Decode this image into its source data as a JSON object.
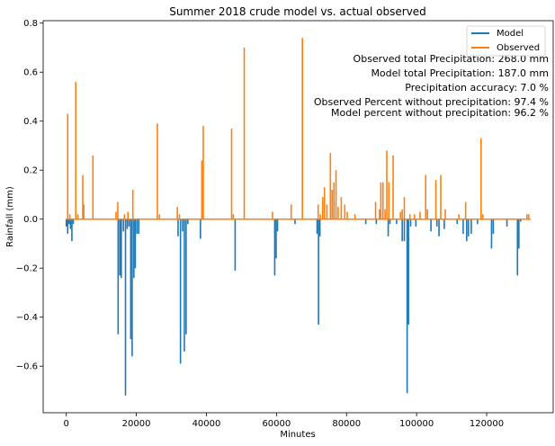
{
  "chart_data": {
    "type": "line",
    "title": "Summer 2018 crude model vs. actual observed",
    "xlabel": "Minutes",
    "ylabel": "Rainfall (mm)",
    "xlim": [
      -6600,
      139000
    ],
    "ylim": [
      -0.79,
      0.81
    ],
    "xticks": [
      0,
      20000,
      40000,
      60000,
      80000,
      100000,
      120000
    ],
    "yticks": [
      -0.6,
      -0.4,
      -0.2,
      0.0,
      0.2,
      0.4,
      0.6,
      0.8
    ],
    "xtick_labels": [
      "0",
      "20000",
      "40000",
      "60000",
      "80000",
      "100000",
      "120000"
    ],
    "ytick_labels": [
      "−0.6",
      "−0.4",
      "−0.2",
      "0.0",
      "0.2",
      "0.4",
      "0.6",
      "0.8"
    ],
    "grid": false,
    "legend_position": "top-right",
    "series": [
      {
        "name": "Model",
        "color": "#1f77b4",
        "points": [
          [
            0,
            -0.03
          ],
          [
            400,
            -0.06
          ],
          [
            800,
            -0.02
          ],
          [
            1200,
            -0.04
          ],
          [
            1600,
            -0.09
          ],
          [
            2000,
            -0.02
          ],
          [
            14800,
            -0.47
          ],
          [
            15300,
            -0.23
          ],
          [
            15700,
            -0.24
          ],
          [
            16300,
            -0.05
          ],
          [
            16900,
            -0.72
          ],
          [
            17400,
            -0.04
          ],
          [
            17900,
            -0.03
          ],
          [
            18400,
            -0.49
          ],
          [
            18800,
            -0.56
          ],
          [
            19300,
            -0.24
          ],
          [
            19700,
            -0.2
          ],
          [
            20200,
            -0.06
          ],
          [
            20700,
            -0.06
          ],
          [
            31900,
            -0.07
          ],
          [
            32600,
            -0.59
          ],
          [
            33200,
            -0.05
          ],
          [
            33700,
            -0.54
          ],
          [
            34200,
            -0.47
          ],
          [
            34700,
            -0.02
          ],
          [
            38300,
            -0.08
          ],
          [
            48200,
            -0.21
          ],
          [
            59500,
            -0.23
          ],
          [
            59900,
            -0.16
          ],
          [
            60300,
            -0.05
          ],
          [
            65300,
            -0.02
          ],
          [
            71600,
            -0.06
          ],
          [
            72000,
            -0.43
          ],
          [
            72400,
            -0.07
          ],
          [
            85500,
            -0.02
          ],
          [
            88500,
            -0.02
          ],
          [
            91900,
            -0.07
          ],
          [
            92400,
            -0.02
          ],
          [
            94300,
            -0.02
          ],
          [
            95900,
            -0.09
          ],
          [
            96500,
            -0.09
          ],
          [
            97300,
            -0.71
          ],
          [
            97700,
            -0.43
          ],
          [
            98300,
            -0.03
          ],
          [
            99800,
            -0.03
          ],
          [
            104100,
            -0.05
          ],
          [
            105800,
            -0.03
          ],
          [
            106400,
            -0.07
          ],
          [
            107900,
            -0.04
          ],
          [
            111600,
            -0.02
          ],
          [
            113300,
            -0.06
          ],
          [
            114300,
            -0.09
          ],
          [
            114800,
            -0.07
          ],
          [
            115600,
            -0.06
          ],
          [
            117400,
            -0.02
          ],
          [
            121400,
            -0.12
          ],
          [
            121900,
            -0.06
          ],
          [
            125800,
            -0.03
          ],
          [
            128800,
            -0.23
          ],
          [
            129200,
            -0.12
          ],
          [
            129700,
            -0.01
          ]
        ]
      },
      {
        "name": "Observed",
        "color": "#ff7f0e",
        "points": [
          [
            400,
            0.43
          ],
          [
            1000,
            0.02
          ],
          [
            2700,
            0.56
          ],
          [
            3300,
            0.02
          ],
          [
            4700,
            0.18
          ],
          [
            5000,
            0.06
          ],
          [
            7600,
            0.26
          ],
          [
            14200,
            0.03
          ],
          [
            14700,
            0.07
          ],
          [
            16600,
            0.02
          ],
          [
            17600,
            0.03
          ],
          [
            19000,
            0.12
          ],
          [
            26000,
            0.39
          ],
          [
            26600,
            0.02
          ],
          [
            31700,
            0.05
          ],
          [
            32300,
            0.02
          ],
          [
            38700,
            0.24
          ],
          [
            39100,
            0.38
          ],
          [
            47200,
            0.37
          ],
          [
            47700,
            0.02
          ],
          [
            50800,
            0.7
          ],
          [
            58900,
            0.03
          ],
          [
            64200,
            0.06
          ],
          [
            67400,
            0.74
          ],
          [
            71900,
            0.06
          ],
          [
            72500,
            0.02
          ],
          [
            73200,
            0.09
          ],
          [
            73700,
            0.13
          ],
          [
            74400,
            0.06
          ],
          [
            75400,
            0.27
          ],
          [
            75900,
            0.12
          ],
          [
            76400,
            0.15
          ],
          [
            77000,
            0.2
          ],
          [
            77600,
            0.05
          ],
          [
            78500,
            0.09
          ],
          [
            79500,
            0.06
          ],
          [
            80200,
            0.03
          ],
          [
            82400,
            0.02
          ],
          [
            88300,
            0.07
          ],
          [
            89400,
            0.04
          ],
          [
            89800,
            0.15
          ],
          [
            90400,
            0.15
          ],
          [
            91000,
            0.04
          ],
          [
            91500,
            0.28
          ],
          [
            92100,
            0.15
          ],
          [
            93300,
            0.26
          ],
          [
            95400,
            0.03
          ],
          [
            95900,
            0.04
          ],
          [
            96500,
            0.09
          ],
          [
            98100,
            0.02
          ],
          [
            99400,
            0.02
          ],
          [
            101000,
            0.03
          ],
          [
            102600,
            0.18
          ],
          [
            103100,
            0.04
          ],
          [
            105500,
            0.16
          ],
          [
            106900,
            0.18
          ],
          [
            108200,
            0.04
          ],
          [
            112100,
            0.02
          ],
          [
            114000,
            0.07
          ],
          [
            118400,
            0.33
          ],
          [
            118900,
            0.02
          ],
          [
            131500,
            0.02
          ],
          [
            132000,
            0.02
          ]
        ]
      }
    ],
    "annotations": [
      "Observed total Precipitation: 268.0 mm",
      "Model total Precipitation: 187.0 mm",
      "Precipitation accuracy: 7.0 %",
      "Observed Percent without precipitation: 97.4 %",
      "Model percent without precipitation: 96.2 %"
    ]
  }
}
